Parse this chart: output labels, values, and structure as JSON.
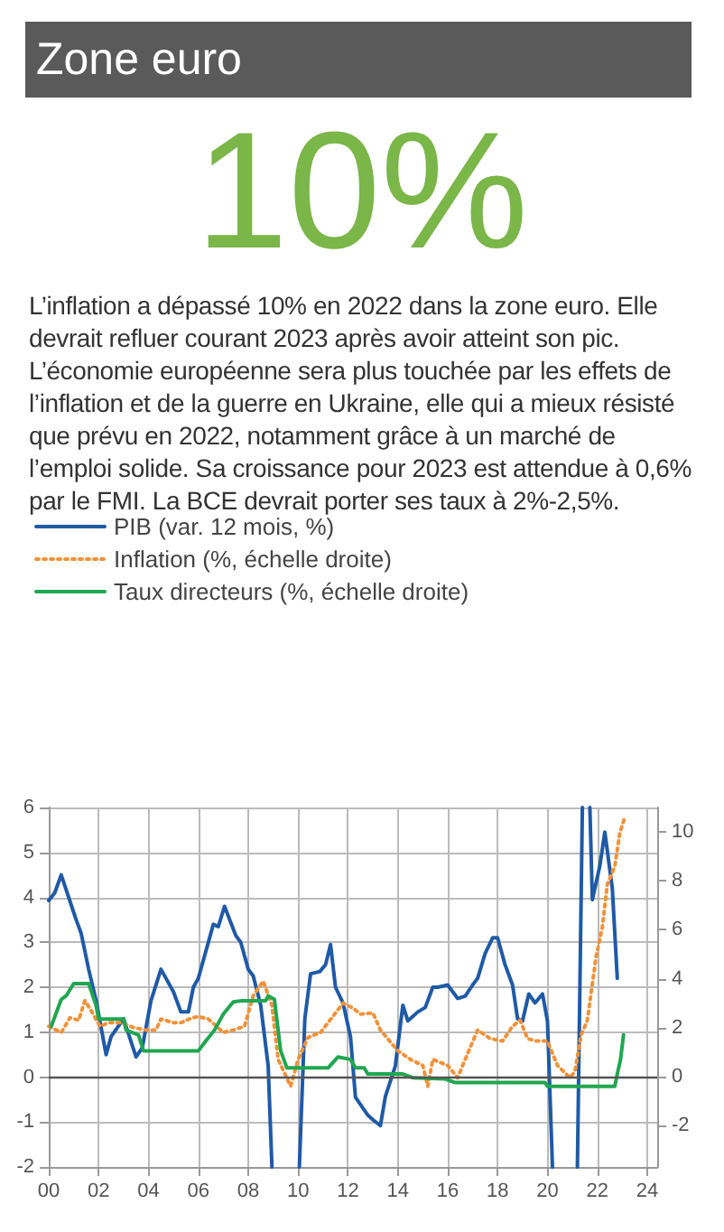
{
  "chart_data": {
    "type": "line",
    "title": "Zone euro",
    "subtitle": "10%",
    "annotations": [
      "L’inflation a dépassé 10% en 2022 dans la zone euro. Elle devrait refluer courant 2023 après avoir atteint son pic. L’économie européenne sera plus touchée par les effets de l’inflation et de la guerre en Ukraine, elle qui a mieux résisté que prévu en 2022, notamment grâce à un marché de l’emploi solide. Sa croissance pour 2023 est attendue à 0,6% par le FMI. La BCE devrait porter ses taux à 2%-2,5%."
    ],
    "xlim": [
      0,
      24.4
    ],
    "xticks": [
      {
        "value": 0,
        "label": "00"
      },
      {
        "value": 2,
        "label": "02"
      },
      {
        "value": 4,
        "label": "04"
      },
      {
        "value": 6,
        "label": "06"
      },
      {
        "value": 8,
        "label": "08"
      },
      {
        "value": 10,
        "label": "10"
      },
      {
        "value": 12,
        "label": "12"
      },
      {
        "value": 14,
        "label": "14"
      },
      {
        "value": 16,
        "label": "16"
      },
      {
        "value": 18,
        "label": "18"
      },
      {
        "value": 20,
        "label": "20"
      },
      {
        "value": 22,
        "label": "22"
      },
      {
        "value": 24,
        "label": "24"
      }
    ],
    "ylim": [
      -2,
      6
    ],
    "yticks": [
      -2,
      -1,
      0,
      1,
      2,
      3,
      4,
      5,
      6
    ],
    "y2lim": [
      -3.7,
      11
    ],
    "y2ticks": [
      -2,
      0,
      2,
      4,
      6,
      8,
      10
    ],
    "grid": true,
    "legend": "top left",
    "marker": "none",
    "ref_lines": [
      {
        "axis": "y",
        "value": 0,
        "color": "#555555"
      }
    ],
    "series": [
      {
        "name": "PIB (var. 12 mois, %)",
        "color": "#1f5aa6",
        "line_style": "solid",
        "x": [
          0,
          0.24,
          0.5,
          0.8,
          1.1,
          1.3,
          1.6,
          1.9,
          2.3,
          2.5,
          3.0,
          3.5,
          3.75,
          4.1,
          4.5,
          5.0,
          5.3,
          5.6,
          5.8,
          6.0,
          6.3,
          6.6,
          6.8,
          7.05,
          7.5,
          7.7,
          8.0,
          8.2,
          8.5,
          8.8,
          8.95,
          9.5,
          10.05,
          10.27,
          10.5,
          10.87,
          11.1,
          11.3,
          11.5,
          11.8,
          12.1,
          12.3,
          12.8,
          13.0,
          13.3,
          13.5,
          13.9,
          14.2,
          14.4,
          14.8,
          15.1,
          15.4,
          15.6,
          16.0,
          16.4,
          16.7,
          17.0,
          17.2,
          17.5,
          17.8,
          18.0,
          18.3,
          18.6,
          18.8,
          19.0,
          19.25,
          19.5,
          19.8,
          20.0,
          20.2,
          20.7,
          21.2,
          21.4,
          21.55,
          21.7,
          21.8,
          22.1,
          22.3,
          22.6,
          22.8
        ],
        "values": [
          3.93,
          4.1,
          4.5,
          4.0,
          3.5,
          3.2,
          2.4,
          1.7,
          0.5,
          0.9,
          1.3,
          0.45,
          0.65,
          1.7,
          2.4,
          1.9,
          1.45,
          1.45,
          2.0,
          2.2,
          2.8,
          3.4,
          3.35,
          3.8,
          3.15,
          3.0,
          2.4,
          2.25,
          1.6,
          0.25,
          -2,
          null,
          -2,
          1.3,
          2.3,
          2.35,
          2.5,
          2.95,
          2.0,
          1.65,
          0.9,
          -0.45,
          -0.85,
          -0.95,
          -1.08,
          -0.43,
          0.25,
          1.6,
          1.25,
          1.45,
          1.55,
          2.0,
          2.0,
          2.05,
          1.75,
          1.8,
          2.05,
          2.2,
          2.75,
          3.1,
          3.1,
          2.5,
          2.05,
          1.3,
          1.25,
          1.85,
          1.65,
          1.85,
          1.25,
          -2,
          null,
          -2,
          6,
          null,
          6,
          3.95,
          4.7,
          5.45,
          4.2,
          2.2
        ]
      },
      {
        "name": "Inflation (%, échelle droite)",
        "color": "#f0923a",
        "line_style": "dotted",
        "axis": "y2",
        "x": [
          0,
          0.5,
          0.85,
          1.2,
          1.45,
          1.7,
          2.05,
          2.4,
          2.9,
          3.4,
          3.9,
          4.3,
          4.5,
          5.0,
          5.3,
          5.75,
          6.0,
          6.4,
          7.0,
          7.4,
          7.85,
          8.2,
          8.6,
          8.95,
          9.2,
          9.7,
          10.0,
          10.4,
          10.9,
          11.35,
          11.8,
          12.2,
          12.5,
          13.0,
          13.3,
          14.0,
          14.5,
          15.0,
          15.2,
          15.4,
          16.0,
          16.4,
          16.7,
          17.2,
          17.7,
          18.2,
          18.6,
          18.9,
          19.2,
          19.55,
          20.0,
          20.4,
          20.9,
          21.1,
          21.35,
          21.6,
          21.95,
          22.2,
          22.4,
          22.7,
          22.9,
          23.1
        ],
        "values": [
          2.05,
          1.8,
          2.4,
          2.3,
          3.1,
          2.7,
          2.05,
          2.2,
          2.2,
          2.0,
          1.9,
          1.9,
          2.35,
          2.2,
          2.2,
          2.4,
          2.45,
          2.35,
          1.8,
          1.9,
          2.05,
          3.3,
          3.9,
          2.9,
          0.7,
          -0.4,
          0.7,
          1.6,
          1.8,
          2.4,
          3.0,
          2.8,
          2.55,
          2.6,
          1.9,
          1.05,
          0.7,
          0.45,
          -0.4,
          0.7,
          0.45,
          -0.05,
          0.7,
          1.9,
          1.55,
          1.45,
          2.05,
          2.3,
          1.55,
          1.45,
          1.45,
          0.45,
          -0.05,
          0.2,
          1.7,
          2.3,
          4.9,
          6.1,
          7.85,
          8.6,
          9.95,
          10.6
        ]
      },
      {
        "name": "Taux directeurs (%, échelle droite)",
        "color": "#21a650",
        "line_style": "solid",
        "axis": "y2",
        "x": [
          0.1,
          0.5,
          0.7,
          1.0,
          1.6,
          1.9,
          2.0,
          3.0,
          3.1,
          3.6,
          3.8,
          6.0,
          6.3,
          6.65,
          7.0,
          7.4,
          7.75,
          8.7,
          8.8,
          9.05,
          9.3,
          9.55,
          11.2,
          11.6,
          12.1,
          12.3,
          12.65,
          12.8,
          14.2,
          14.6,
          15.9,
          16.3,
          19.9,
          20.0,
          22.7,
          22.8,
          22.93,
          23.05
        ],
        "values": [
          2.05,
          3.15,
          3.3,
          3.8,
          3.8,
          2.9,
          2.35,
          2.35,
          1.9,
          1.7,
          1.05,
          1.05,
          1.45,
          1.9,
          2.55,
          3.05,
          3.1,
          3.1,
          3.3,
          3.15,
          1.05,
          0.35,
          0.35,
          0.8,
          0.7,
          0.35,
          0.35,
          0.1,
          0.1,
          -0.05,
          -0.1,
          -0.25,
          -0.25,
          -0.4,
          -0.4,
          0.1,
          0.7,
          1.7
        ]
      }
    ]
  }
}
